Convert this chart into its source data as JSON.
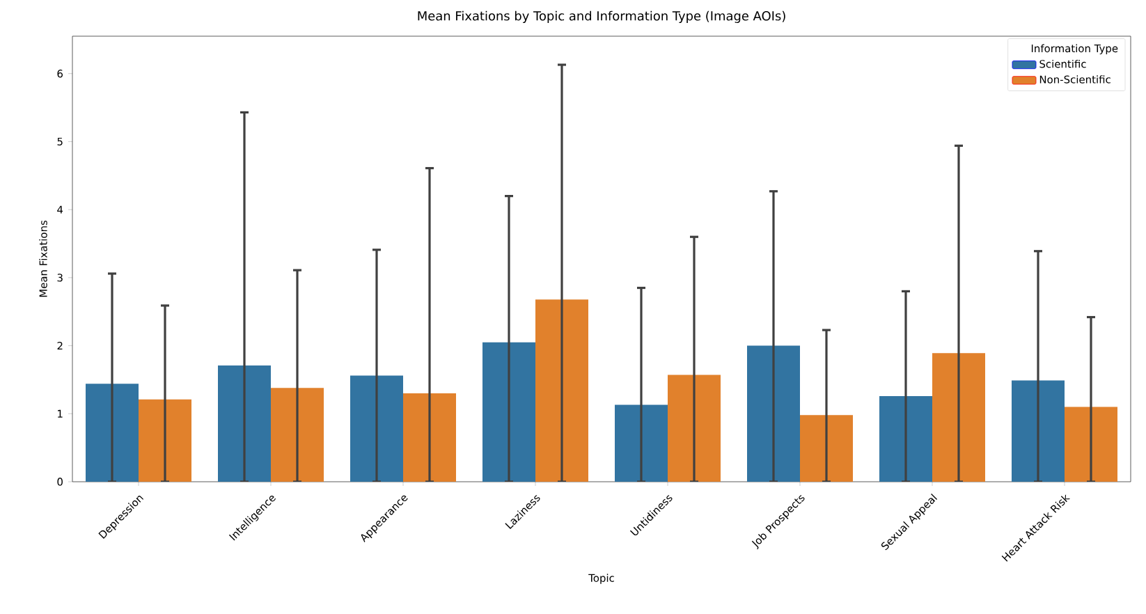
{
  "chart_data": {
    "type": "bar",
    "title": "Mean Fixations by Topic and Information Type (Image AOIs)",
    "xlabel": "Topic",
    "ylabel": "Mean Fixations",
    "legend_title": "Information Type",
    "categories": [
      "Depression",
      "Intelligence",
      "Appearance",
      "Laziness",
      "Untidiness",
      "Job Prospects",
      "Sexual Appeal",
      "Heart Attack Risk"
    ],
    "series": [
      {
        "name": "Scientific",
        "color": "#3274a1",
        "values": [
          1.44,
          1.71,
          1.56,
          2.05,
          1.13,
          2.0,
          1.26,
          1.49
        ],
        "errors": [
          [
            0,
            3.06
          ],
          [
            0,
            5.43
          ],
          [
            0,
            3.41
          ],
          [
            0,
            4.2
          ],
          [
            0,
            2.85
          ],
          [
            0,
            4.27
          ],
          [
            0,
            2.8
          ],
          [
            0,
            3.39
          ]
        ]
      },
      {
        "name": "Non-Scientific",
        "color": "#e1812c",
        "values": [
          1.21,
          1.38,
          1.3,
          2.68,
          1.57,
          0.98,
          1.89,
          1.1
        ],
        "errors": [
          [
            0,
            2.59
          ],
          [
            0,
            3.11
          ],
          [
            0,
            4.61
          ],
          [
            0,
            6.13
          ],
          [
            0,
            3.6
          ],
          [
            0,
            2.23
          ],
          [
            0,
            4.94
          ],
          [
            0,
            2.42
          ]
        ]
      }
    ],
    "ylim": [
      0,
      6.55
    ],
    "yticks": [
      0,
      1,
      2,
      3,
      4,
      5,
      6
    ],
    "grid": false,
    "legend": "top right"
  }
}
